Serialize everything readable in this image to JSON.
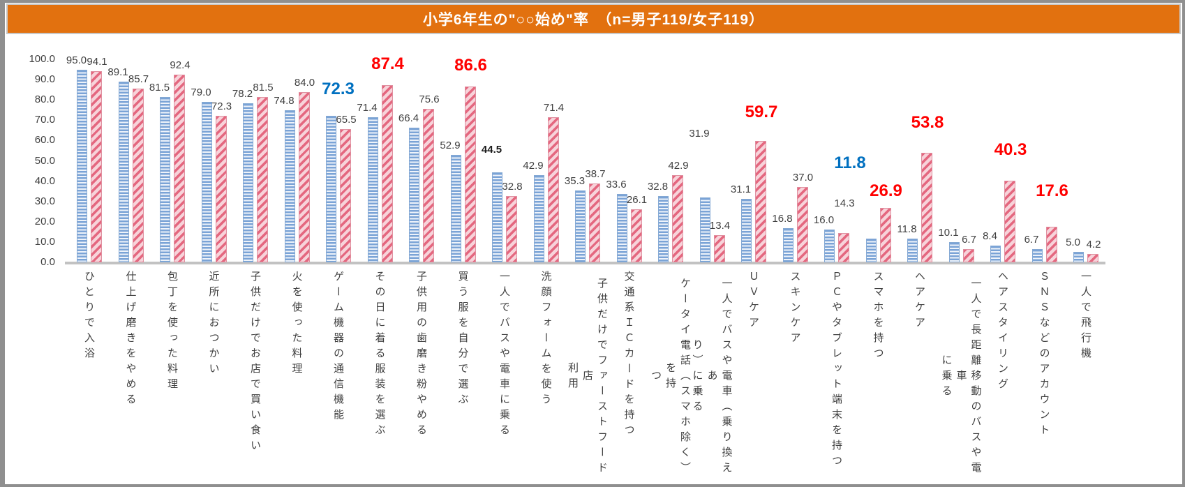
{
  "title": {
    "text": "小学6年生の\"○○始め\"率　（n=男子119/女子119）",
    "bg_color": "#e2710f",
    "text_color": "#ffffff"
  },
  "chart_data": {
    "type": "bar",
    "title": "小学6年生の\"○○始め\"率　（n=男子119/女子119）",
    "xlabel": "",
    "ylabel": "",
    "ylim": [
      0,
      100
    ],
    "grid": false,
    "legend": "none",
    "yticks": [
      "100.0",
      "90.0",
      "80.0",
      "70.0",
      "60.0",
      "50.0",
      "40.0",
      "30.0",
      "20.0",
      "10.0",
      "0.0"
    ],
    "categories": [
      "ひとりで入浴",
      "仕上げ磨きをやめる",
      "包丁を使った料理",
      "近所におつかい",
      "子供だけでお店で買い食い",
      "火を使った料理",
      "ゲーム機器の通信機能",
      "その日に着る服装を選ぶ",
      "子供用の歯磨き粉やめる",
      "買う服を自分で選ぶ",
      "一人でバスや電車に乗る",
      "洗顔フォームを使う",
      "子供だけでファーストフード店\n利用",
      "交通系ＩＣカードを持つ",
      "ケータイ電話（スマホ除く）を持\nつ",
      "一人でバスや電車（乗り換えあ\nり）に乗る",
      "ＵＶケア",
      "スキンケア",
      "ＰＣやタブレット端末を持つ",
      "スマホを持つ",
      "ヘアケア",
      "一人で長距離移動のバスや電車\nに乗る",
      "ヘアスタイリング",
      "ＳＮＳなどのアカウント",
      "一人で飛行機"
    ],
    "series": [
      {
        "name": "男子",
        "pattern": "horizontal-stripes",
        "color": "#7aa3d6",
        "values": [
          95.0,
          89.1,
          81.5,
          79.0,
          78.2,
          74.8,
          72.3,
          71.4,
          66.4,
          52.9,
          44.5,
          42.9,
          35.3,
          33.6,
          32.8,
          31.9,
          31.1,
          16.8,
          16.0,
          11.8,
          11.8,
          10.1,
          8.4,
          6.7,
          5.0
        ],
        "emphasized_indices": [
          6,
          19
        ],
        "emphasis_color": "#0070c0",
        "bold_black_indices": [
          10
        ]
      },
      {
        "name": "女子",
        "pattern": "diagonal-stripes",
        "color": "#e4677f",
        "values": [
          94.1,
          85.7,
          92.4,
          72.3,
          81.5,
          84.0,
          65.5,
          87.4,
          75.6,
          86.6,
          32.8,
          71.4,
          38.7,
          26.1,
          42.9,
          13.4,
          59.7,
          37.0,
          14.3,
          26.9,
          53.8,
          6.7,
          40.3,
          17.6,
          4.2
        ],
        "emphasized_indices": [
          7,
          9,
          16,
          19,
          20,
          22,
          23
        ],
        "emphasis_color": "#ff0000",
        "bold_black_indices": []
      }
    ]
  }
}
